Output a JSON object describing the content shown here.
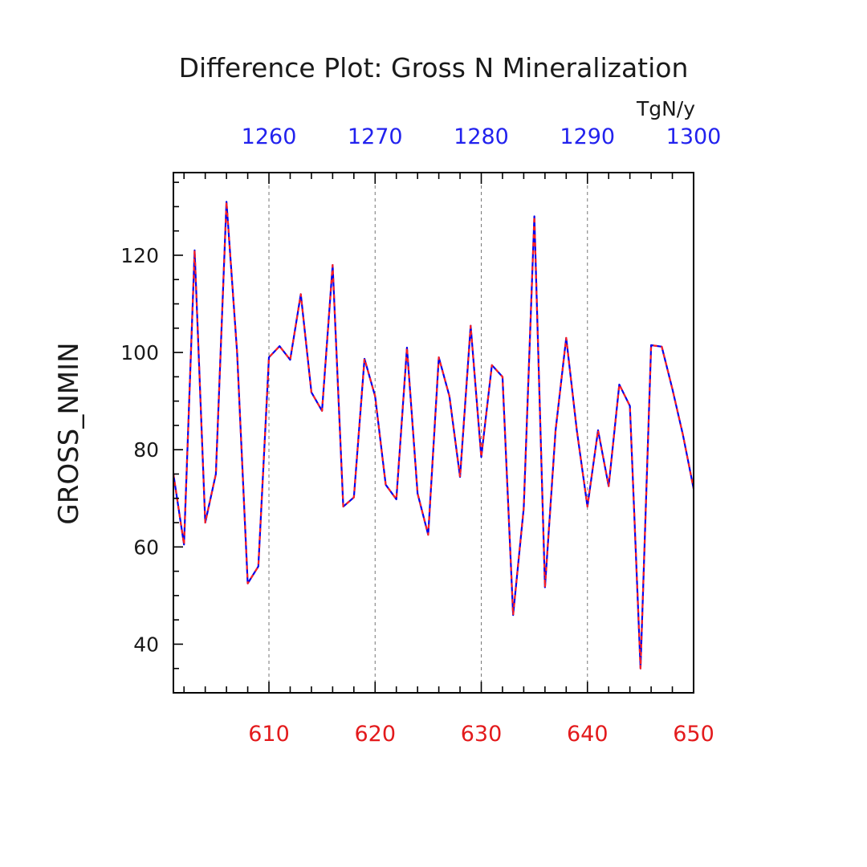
{
  "chart_data": {
    "type": "line",
    "title": "Difference Plot: Gross N Mineralization",
    "units": "TgN/y",
    "ylabel": "GROSS_NMIN",
    "xlim": [
      601,
      650
    ],
    "ylim": [
      30,
      137
    ],
    "yticks": [
      40,
      60,
      80,
      100,
      120
    ],
    "ytick_labels": [
      "40",
      "60",
      "80",
      "100",
      "120"
    ],
    "ytick_minor_step": 5,
    "xticks_bottom": [
      610,
      620,
      630,
      640,
      650
    ],
    "xtick_labels_bottom": [
      "610",
      "620",
      "630",
      "640",
      "650"
    ],
    "xticks_top": [
      610,
      620,
      630,
      640,
      650
    ],
    "xtick_labels_top": [
      "1260",
      "1270",
      "1280",
      "1290",
      "1300"
    ],
    "xtick_minor_step": 2,
    "grid": "vertical dashed at major x ticks",
    "colors": {
      "series_a": "#0000ee",
      "series_b": "#ff2020",
      "bottom_axis": "#e31a1c",
      "top_axis": "#2222ee"
    },
    "x": [
      601,
      602,
      603,
      604,
      605,
      606,
      607,
      608,
      609,
      610,
      611,
      612,
      613,
      614,
      615,
      616,
      617,
      618,
      619,
      620,
      621,
      622,
      623,
      624,
      625,
      626,
      627,
      628,
      629,
      630,
      631,
      632,
      633,
      634,
      635,
      636,
      637,
      638,
      639,
      640,
      641,
      642,
      643,
      644,
      645,
      646,
      647,
      648,
      649,
      650
    ],
    "series": [
      {
        "values": [
          75,
          60.5,
          121,
          65,
          75,
          131,
          100,
          52.5,
          56,
          99,
          101.3,
          98.5,
          112,
          91.8,
          88,
          118,
          68.3,
          70.2,
          98.7,
          91,
          72.8,
          69.8,
          101,
          71,
          62.5,
          99,
          91,
          74.4,
          105.5,
          78.5,
          97.4,
          95,
          46,
          68,
          128,
          51.7,
          84,
          103,
          84,
          68.3,
          84,
          72.5,
          93.4,
          89,
          35,
          101.5,
          101.2,
          92.5,
          83,
          72
        ]
      },
      {
        "values": [
          75,
          60.5,
          121,
          65,
          75,
          131,
          100,
          52.5,
          56,
          99,
          101.3,
          98.5,
          112,
          91.8,
          88,
          118,
          68.3,
          70.2,
          98.7,
          91,
          72.8,
          69.8,
          101,
          71,
          62.5,
          99,
          91,
          74.4,
          105.5,
          78.5,
          97.4,
          95,
          46,
          68,
          128,
          51.7,
          84,
          103,
          84,
          68.3,
          84,
          72.5,
          93.4,
          89,
          35,
          101.5,
          101.2,
          92.5,
          83,
          72
        ]
      }
    ]
  }
}
